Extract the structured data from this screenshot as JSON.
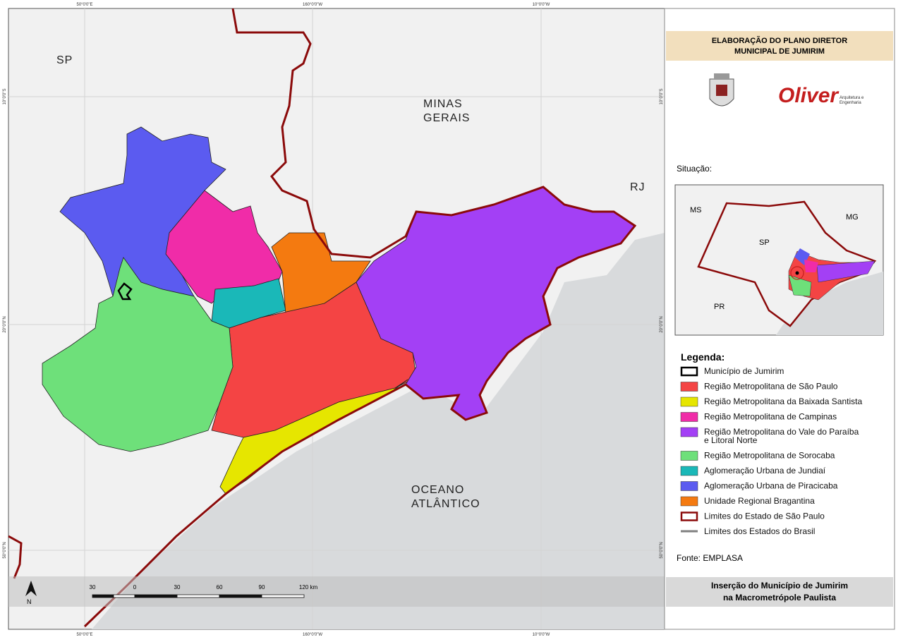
{
  "frame": {
    "top_coords": [
      "50°0'0\"E",
      "160°0'0\"W",
      "10°0'0\"W"
    ],
    "bottom_coords": [
      "50°0'0\"E",
      "160°0'0\"W",
      "10°0'0\"W"
    ],
    "left_coords": [
      "10°0'0\"S",
      "20°0'0\"N",
      "50°0'0\"N"
    ],
    "right_coords": [
      "10°0'0\"S",
      "20°0'0\"N",
      "50°0'0\"N"
    ]
  },
  "map": {
    "labels": [
      "SP",
      "MINAS",
      "GERAIS",
      "RJ",
      "OCEANO",
      "ATLÂNTICO"
    ]
  },
  "panel": {
    "title_lines": [
      "ELABORAÇÃO DO PLANO DIRETOR",
      "MUNICIPAL DE JUMIRIM"
    ],
    "logo_name": "Oliver",
    "logo_sub": [
      "Arquitetura e",
      "Engenharia"
    ],
    "situation": "Situação:",
    "inset_labels": [
      "MS",
      "MG",
      "SP",
      "PR"
    ],
    "source": "Fonte: EMPLASA",
    "footer_lines": [
      "Inserção do Município de Jumirim",
      "na Macrometrópole Paulista"
    ]
  },
  "legend": {
    "title": "Legenda:",
    "items": [
      {
        "label": "Município de Jumirim",
        "color": "#000000",
        "symbol": "outline"
      },
      {
        "label": "Região Metropolitana de São Paulo",
        "color": "#f44444",
        "symbol": "box"
      },
      {
        "label": "Região Metropolitana da Baixada Santista",
        "color": "#e6e600",
        "symbol": "box"
      },
      {
        "label": "Região Metropolitana de Campinas",
        "color": "#f02ca8",
        "symbol": "box"
      },
      {
        "label": [
          "Região Metropolitana do Vale do Paraíba",
          "e Litoral Norte"
        ],
        "color": "#a340f5",
        "symbol": "box"
      },
      {
        "label": "Região Metropolitana de Sorocaba",
        "color": "#6ee07a",
        "symbol": "box"
      },
      {
        "label": "Aglomeração Urbana de Jundiaí",
        "color": "#1ab8b8",
        "symbol": "box"
      },
      {
        "label": "Aglomeração Urbana de Piracicaba",
        "color": "#5b5bf0",
        "symbol": "box"
      },
      {
        "label": "Unidade Regional Bragantina",
        "color": "#f47a10",
        "symbol": "box"
      },
      {
        "label": "Limites do Estado de São Paulo",
        "color": "#8b0a0a",
        "symbol": "outline"
      },
      {
        "label": "Limites dos Estados do Brasil",
        "color": "#808080",
        "symbol": "line"
      }
    ]
  },
  "scale_bar": {
    "labels": [
      "30",
      "0",
      "30",
      "60",
      "90",
      "120 km"
    ],
    "north": "N"
  }
}
